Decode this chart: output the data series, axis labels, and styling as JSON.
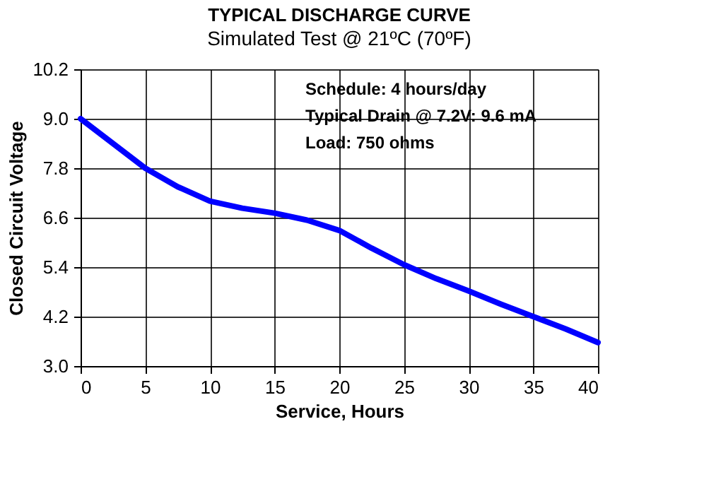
{
  "chart_data": {
    "type": "line",
    "title": "TYPICAL DISCHARGE CURVE",
    "subtitle": "Simulated Test @ 21ºC (70ºF)",
    "xlabel": "Service, Hours",
    "ylabel": "Closed Circuit Voltage",
    "x": [
      0,
      2.5,
      5,
      7.5,
      10,
      12.5,
      15,
      17.5,
      20,
      22.5,
      25,
      27.5,
      30,
      32.5,
      35,
      37.5,
      40
    ],
    "series": [
      {
        "color": "#0000ff",
        "values": [
          9.0,
          8.4,
          7.8,
          7.35,
          7.0,
          6.83,
          6.71,
          6.54,
          6.29,
          5.86,
          5.46,
          5.12,
          4.82,
          4.5,
          4.2,
          3.9,
          3.57
        ]
      }
    ],
    "xlim": [
      0,
      40
    ],
    "xticks": [
      0,
      5,
      10,
      15,
      20,
      25,
      30,
      35,
      40
    ],
    "ylim": [
      3.0,
      10.2
    ],
    "yticks": [
      {
        "value": 3.0,
        "label": "3.0"
      },
      {
        "value": 4.2,
        "label": "4.2"
      },
      {
        "value": 5.4,
        "label": "5.4"
      },
      {
        "value": 6.6,
        "label": "6.6"
      },
      {
        "value": 7.8,
        "label": "7.8"
      },
      {
        "value": 9.0,
        "label": "9.0"
      },
      {
        "value": 10.2,
        "label": "10.2"
      }
    ],
    "grid": true,
    "marker": "none",
    "line_style": "solid",
    "annotations": [
      "Schedule: 4 hours/day",
      "Typical Drain @ 7.2V: 9.6 mA",
      "Load: 750 ohms"
    ]
  }
}
